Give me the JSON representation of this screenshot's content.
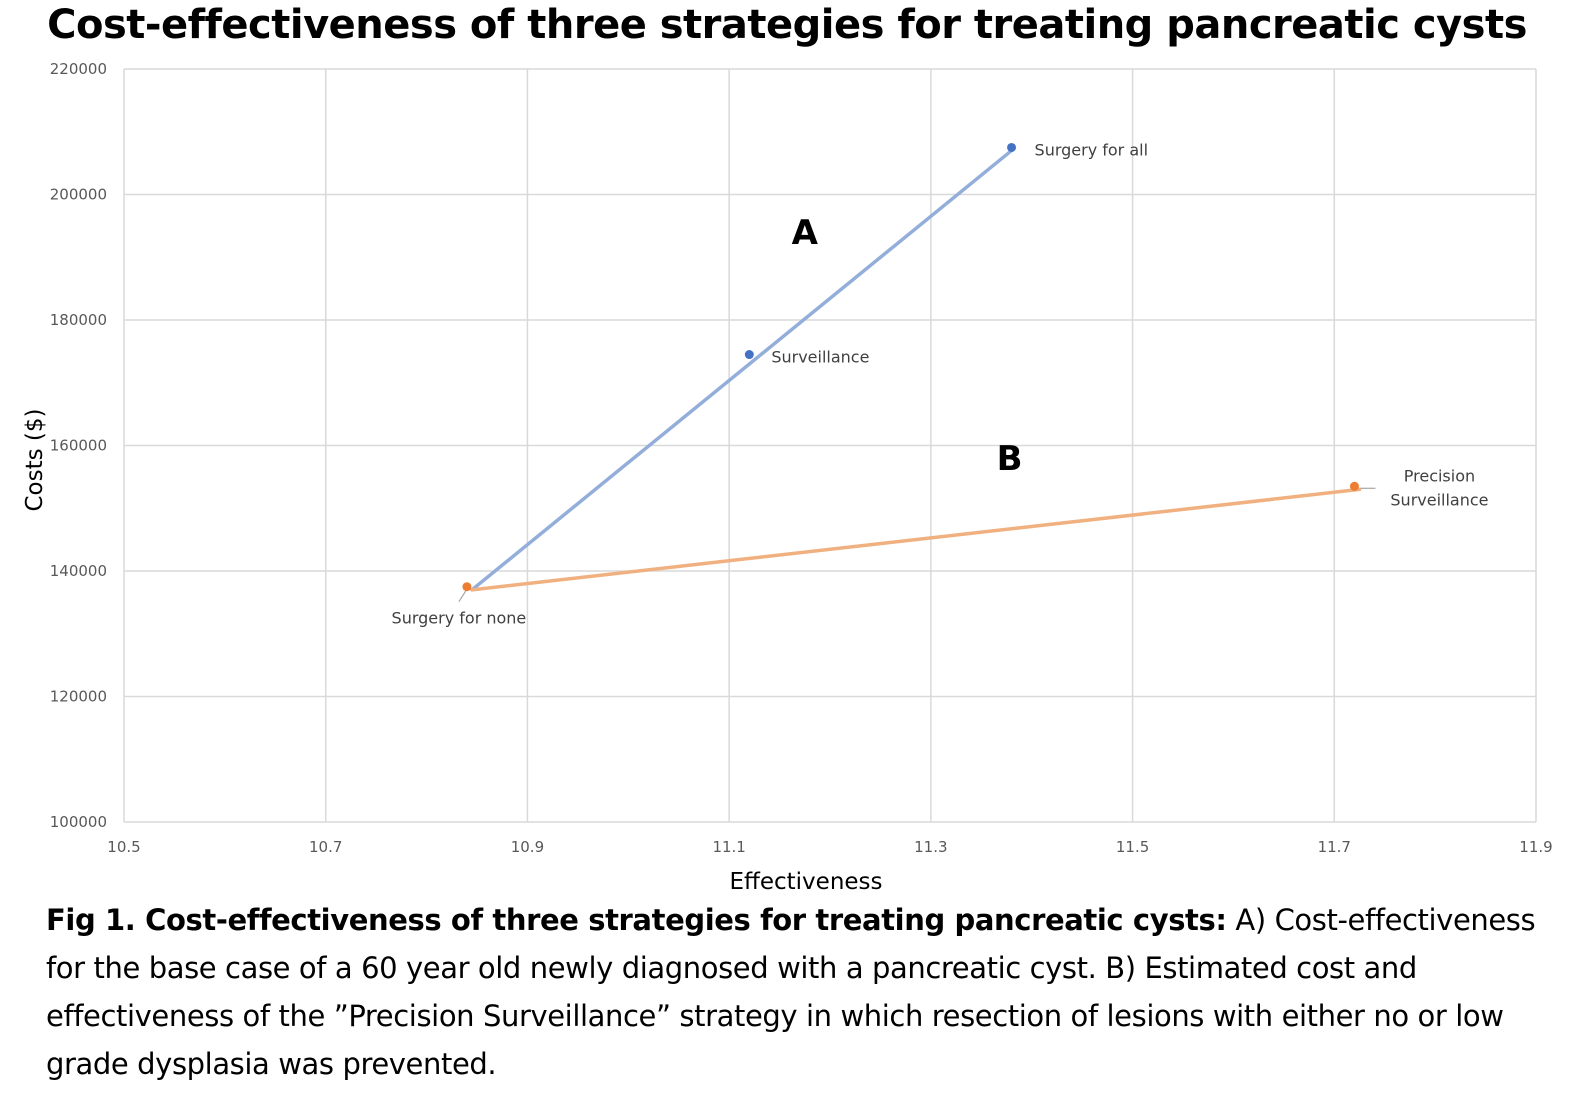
{
  "chart_data": {
    "type": "scatter",
    "title": "Cost-effectiveness of three strategies for treating pancreatic cysts",
    "xlabel": "Effectiveness",
    "ylabel": "Costs ($)",
    "xlim": [
      10.5,
      11.9
    ],
    "ylim": [
      100000,
      220000
    ],
    "x_ticks": [
      10.5,
      10.7,
      10.9,
      11.1,
      11.3,
      11.5,
      11.7,
      11.9
    ],
    "x_tick_labels": [
      "10.5",
      "10.7",
      "10.9",
      "11.1",
      "11.3",
      "11.5",
      "11.7",
      "11.9"
    ],
    "y_ticks": [
      100000,
      120000,
      140000,
      160000,
      180000,
      200000,
      220000
    ],
    "y_tick_labels": [
      "100000",
      "120000",
      "140000",
      "160000",
      "180000",
      "200000",
      "220000"
    ],
    "grid": true,
    "points": [
      {
        "label": "Surgery for none",
        "x": 10.84,
        "y": 137500,
        "color": "#ED7D31"
      },
      {
        "label": "Surveillance",
        "x": 11.12,
        "y": 174500,
        "color": "#4472C4"
      },
      {
        "label": "Surgery for all",
        "x": 11.38,
        "y": 207500,
        "color": "#4472C4"
      },
      {
        "label": "Precision Surveillance",
        "x": 11.72,
        "y": 153500,
        "color": "#ED7D31"
      }
    ],
    "lines": [
      {
        "from": [
          10.845,
          137000
        ],
        "to": [
          11.38,
          207000
        ],
        "color": "#94AEDB"
      },
      {
        "from": [
          10.845,
          137000
        ],
        "to": [
          11.725,
          153000
        ],
        "color": "#F0B07F"
      }
    ],
    "annotations": [
      {
        "text": "A",
        "x": 11.175,
        "y": 194000
      },
      {
        "text": "B",
        "x": 11.378,
        "y": 158000
      }
    ]
  },
  "caption": {
    "bold": "Fig 1. Cost-effectiveness of three strategies for treating pancreatic cysts:",
    "text": " A) Cost-effectiveness for the base case of a 60 year old newly diagnosed with a pancreatic cyst. B) Estimated cost and effectiveness of the ”Precision Surveillance” strategy in which resection of lesions with either no or low grade dysplasia was prevented."
  }
}
